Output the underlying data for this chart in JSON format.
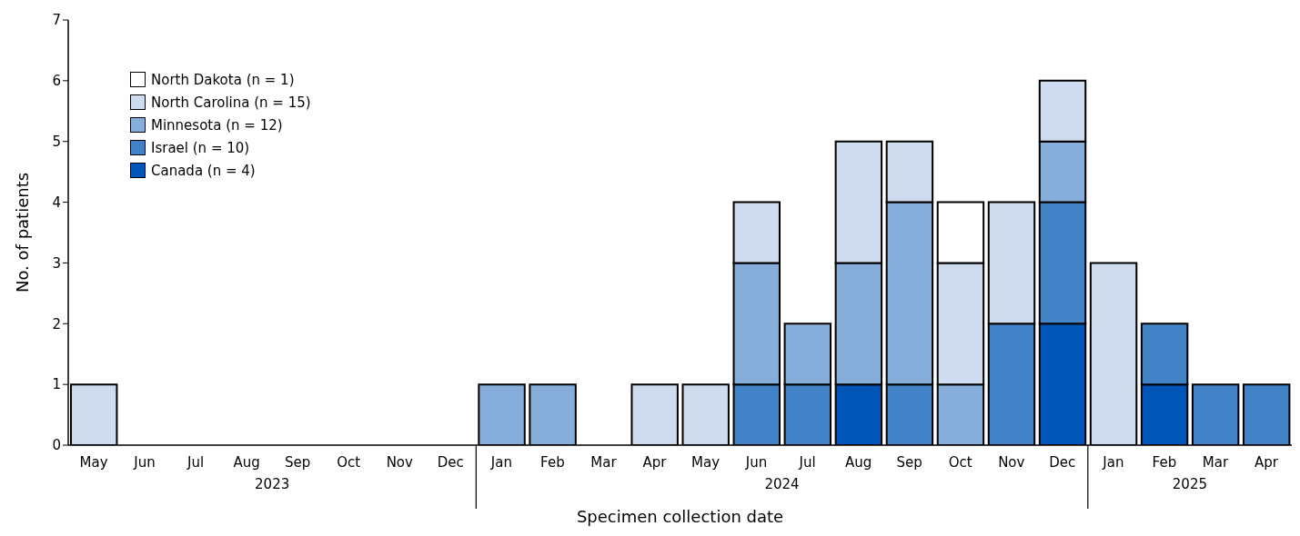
{
  "chart_data": {
    "type": "bar",
    "stacked": true,
    "xlabel": "Specimen collection date",
    "ylabel": "No. of patients",
    "x": [
      "2023-05",
      "2023-06",
      "2023-07",
      "2023-08",
      "2023-09",
      "2023-10",
      "2023-11",
      "2023-12",
      "2024-01",
      "2024-02",
      "2024-03",
      "2024-04",
      "2024-05",
      "2024-06",
      "2024-07",
      "2024-08",
      "2024-09",
      "2024-10",
      "2024-11",
      "2024-12",
      "2025-01",
      "2025-02",
      "2025-03",
      "2025-04"
    ],
    "xticks": [
      {
        "value": "2023-05",
        "label": "May"
      },
      {
        "value": "2023-06",
        "label": "Jun"
      },
      {
        "value": "2023-07",
        "label": "Jul"
      },
      {
        "value": "2023-08",
        "label": "Aug"
      },
      {
        "value": "2023-09",
        "label": "Sep"
      },
      {
        "value": "2023-10",
        "label": "Oct"
      },
      {
        "value": "2023-11",
        "label": "Nov"
      },
      {
        "value": "2023-12",
        "label": "Dec"
      },
      {
        "value": "2024-01",
        "label": "Jan"
      },
      {
        "value": "2024-02",
        "label": "Feb"
      },
      {
        "value": "2024-03",
        "label": "Mar"
      },
      {
        "value": "2024-04",
        "label": "Apr"
      },
      {
        "value": "2024-05",
        "label": "May"
      },
      {
        "value": "2024-06",
        "label": "Jun"
      },
      {
        "value": "2024-07",
        "label": "Jul"
      },
      {
        "value": "2024-08",
        "label": "Aug"
      },
      {
        "value": "2024-09",
        "label": "Sep"
      },
      {
        "value": "2024-10",
        "label": "Oct"
      },
      {
        "value": "2024-11",
        "label": "Nov"
      },
      {
        "value": "2024-12",
        "label": "Dec"
      },
      {
        "value": "2025-01",
        "label": "Jan"
      },
      {
        "value": "2025-02",
        "label": "Feb"
      },
      {
        "value": "2025-03",
        "label": "Mar"
      },
      {
        "value": "2025-04",
        "label": "Apr"
      }
    ],
    "xlim": [
      "2023-04-16",
      "2025-04-16"
    ],
    "annotations": [
      "2023",
      "2024",
      "2025"
    ],
    "series": [
      {
        "name": "Canada (n = 4)",
        "color": "#0055b8",
        "values": [
          0,
          0,
          0,
          0,
          0,
          0,
          0,
          0,
          0,
          0,
          0,
          0,
          0,
          0,
          0,
          1,
          0,
          0,
          0,
          2,
          0,
          1,
          0,
          0
        ]
      },
      {
        "name": "Israel (n = 10)",
        "color": "#4283c8",
        "values": [
          0,
          0,
          0,
          0,
          0,
          0,
          0,
          0,
          0,
          0,
          0,
          0,
          0,
          1,
          1,
          0,
          1,
          0,
          2,
          2,
          0,
          1,
          1,
          1
        ]
      },
      {
        "name": "Minnesota (n = 12)",
        "color": "#87aedb",
        "values": [
          0,
          0,
          0,
          0,
          0,
          0,
          0,
          0,
          1,
          1,
          0,
          0,
          0,
          2,
          1,
          2,
          3,
          1,
          0,
          1,
          0,
          0,
          0,
          0
        ]
      },
      {
        "name": "North Carolina (n = 15)",
        "color": "#cfdcf0",
        "values": [
          1,
          0,
          0,
          0,
          0,
          0,
          0,
          0,
          0,
          0,
          0,
          1,
          1,
          1,
          0,
          2,
          1,
          2,
          2,
          1,
          3,
          0,
          0,
          0
        ]
      },
      {
        "name": "North Dakota (n = 1)",
        "color": "#ffffff",
        "values": [
          0,
          0,
          0,
          0,
          0,
          0,
          0,
          0,
          0,
          0,
          0,
          0,
          0,
          0,
          0,
          0,
          0,
          1,
          0,
          0,
          0,
          0,
          0,
          0
        ]
      }
    ],
    "ylim": [
      0,
      7
    ],
    "yticks": [
      0,
      1,
      2,
      3,
      4,
      5,
      6,
      7
    ],
    "grid": false,
    "legend": "top left"
  }
}
